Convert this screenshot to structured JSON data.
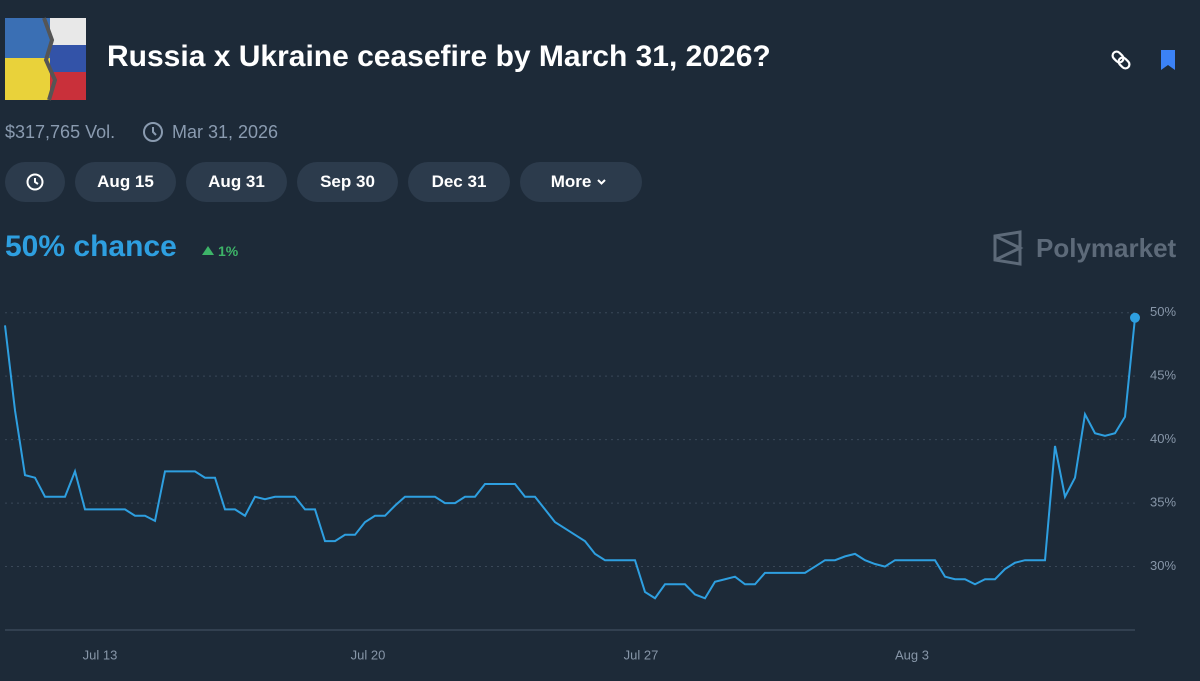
{
  "header": {
    "title": "Russia x Ukraine ceasefire by March 31, 2026?"
  },
  "market": {
    "volume": "$317,765 Vol.",
    "end_date": "Mar 31, 2026"
  },
  "filters": [
    "Aug 15",
    "Aug 31",
    "Sep 30",
    "Dec 31",
    "More"
  ],
  "summary": {
    "chance": "50% chance",
    "change": "1%",
    "brand": "Polymarket"
  },
  "chart_data": {
    "type": "line",
    "color": "#2e9fe0",
    "grid": true,
    "values": [
      49,
      42.3,
      37.2,
      37,
      35.5,
      35.5,
      35.5,
      37.5,
      34.5,
      34.5,
      34.5,
      34.5,
      34.5,
      34,
      34,
      33.6,
      37.5,
      37.5,
      37.5,
      37.5,
      37,
      37,
      34.5,
      34.5,
      34,
      35.5,
      35.3,
      35.5,
      35.5,
      35.5,
      34.5,
      34.5,
      32,
      32,
      32.5,
      32.5,
      33.5,
      34,
      34,
      34.8,
      35.5,
      35.5,
      35.5,
      35.5,
      35,
      35,
      35.5,
      35.5,
      36.5,
      36.5,
      36.5,
      36.5,
      35.5,
      35.5,
      34.5,
      33.5,
      33,
      32.5,
      32,
      31,
      30.5,
      30.5,
      30.5,
      30.5,
      28,
      27.5,
      28.6,
      28.6,
      28.6,
      27.8,
      27.5,
      28.8,
      29,
      29.2,
      28.6,
      28.6,
      29.5,
      29.5,
      29.5,
      29.5,
      29.5,
      30,
      30.5,
      30.5,
      30.8,
      31,
      30.5,
      30.2,
      30,
      30.5,
      30.5,
      30.5,
      30.5,
      30.5,
      29.2,
      29,
      29,
      28.6,
      29,
      29,
      29.8,
      30.3,
      30.5,
      30.5,
      30.5,
      39.5,
      35.5,
      37,
      42,
      40.5,
      40.3,
      40.5,
      41.8,
      49.6
    ],
    "xlim": [
      0,
      113
    ],
    "xticks": [
      {
        "value": 9.5,
        "label": "Jul 13"
      },
      {
        "value": 36.3,
        "label": "Jul 20"
      },
      {
        "value": 63.6,
        "label": "Jul 27"
      },
      {
        "value": 90.7,
        "label": "Aug 3"
      }
    ],
    "ylim": [
      25,
      51
    ],
    "yticks": [
      {
        "value": 30,
        "label": "30%"
      },
      {
        "value": 35,
        "label": "35%"
      },
      {
        "value": 40,
        "label": "40%"
      },
      {
        "value": 45,
        "label": "45%"
      },
      {
        "value": 50,
        "label": "50%"
      }
    ]
  }
}
